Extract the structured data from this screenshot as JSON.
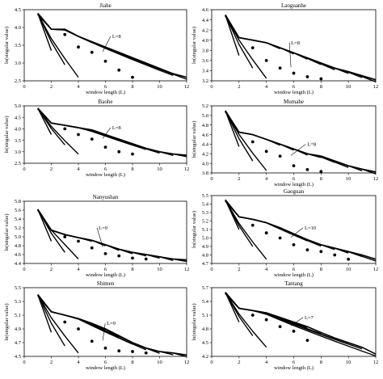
{
  "chart_data": [
    {
      "type": "line",
      "title": "Jiahe",
      "xlabel": "window length (L)",
      "ylabel": "ln(singular value)",
      "xlim": [
        0,
        12
      ],
      "ylim": [
        2.5,
        4.5
      ],
      "xticks": [
        "0",
        "2",
        "4",
        "6",
        "8",
        "10",
        "12"
      ],
      "yticks": [
        "2.5",
        "3.0",
        "3.5",
        "4.0",
        "4.5"
      ],
      "annotation": "L=8",
      "series_count": 12,
      "top": [
        4.4,
        3.95,
        3.95,
        3.75,
        3.6,
        3.45,
        3.3,
        3.15,
        3.0,
        2.85,
        2.7,
        2.6
      ],
      "bottom": [
        3.9,
        3.35,
        2.95,
        2.6
      ],
      "dots": [
        [
          3,
          3.8
        ],
        [
          4,
          3.45
        ],
        [
          5,
          3.3
        ],
        [
          6,
          3.05
        ],
        [
          7,
          2.8
        ],
        [
          8,
          2.6
        ]
      ],
      "annotation_at": [
        6.5,
        3.75
      ]
    },
    {
      "type": "line",
      "title": "Laoguanhe",
      "xlabel": "window length (L)",
      "ylabel": "ln(singular value)",
      "xlim": [
        0,
        12
      ],
      "ylim": [
        3.2,
        4.6
      ],
      "xticks": [
        "0",
        "2",
        "4",
        "6",
        "8",
        "10",
        "12"
      ],
      "yticks": [
        "3.2",
        "3.4",
        "3.6",
        "3.8",
        "4.0",
        "4.2",
        "4.4",
        "4.6"
      ],
      "annotation": "L=8",
      "series_count": 12,
      "top": [
        4.5,
        4.05,
        4.0,
        3.95,
        3.85,
        3.75,
        3.65,
        3.55,
        3.45,
        3.38,
        3.3,
        3.22
      ],
      "bottom": [
        4.1,
        3.7,
        3.45,
        3.25
      ],
      "dots": [
        [
          3,
          3.85
        ],
        [
          4,
          3.6
        ],
        [
          5,
          3.45
        ],
        [
          6,
          3.35
        ],
        [
          7,
          3.28
        ],
        [
          8,
          3.24
        ]
      ],
      "annotation_at": [
        5.8,
        3.95
      ]
    },
    {
      "type": "line",
      "title": "Baohe",
      "xlabel": "window length (L)",
      "ylabel": "ln(singular value)",
      "xlim": [
        0,
        12
      ],
      "ylim": [
        2.5,
        5.0
      ],
      "xticks": [
        "0",
        "2",
        "4",
        "6",
        "8",
        "10",
        "12"
      ],
      "yticks": [
        "2.5",
        "3.0",
        "3.5",
        "4.0",
        "4.5",
        "5.0"
      ],
      "annotation": "L=8",
      "series_count": 12,
      "top": [
        4.9,
        4.25,
        4.15,
        4.05,
        3.95,
        3.75,
        3.55,
        3.35,
        3.15,
        3.0,
        2.9,
        2.85
      ],
      "bottom": [
        4.35,
        3.75,
        3.3,
        2.9
      ],
      "dots": [
        [
          3,
          4.0
        ],
        [
          4,
          3.75
        ],
        [
          5,
          3.55
        ],
        [
          6,
          3.2
        ],
        [
          7,
          3.0
        ],
        [
          8,
          2.9
        ]
      ],
      "annotation_at": [
        6.5,
        4.05
      ]
    },
    {
      "type": "line",
      "title": "Mumahe",
      "xlabel": "window length (L)",
      "ylabel": "ln(singular value)",
      "xlim": [
        0,
        12
      ],
      "ylim": [
        3.8,
        5.2
      ],
      "xticks": [
        "0",
        "2",
        "4",
        "6",
        "8",
        "10",
        "12"
      ],
      "yticks": [
        "3.8",
        "4.0",
        "4.2",
        "4.4",
        "4.6",
        "4.8",
        "5.0",
        "5.2"
      ],
      "annotation": "L=8",
      "series_count": 12,
      "top": [
        5.1,
        4.65,
        4.6,
        4.5,
        4.4,
        4.3,
        4.2,
        4.15,
        4.05,
        3.95,
        3.88,
        3.82
      ],
      "bottom": [
        4.75,
        4.35,
        4.05,
        3.85
      ],
      "dots": [
        [
          3,
          4.45
        ],
        [
          4,
          4.25
        ],
        [
          5,
          4.15
        ],
        [
          6,
          3.95
        ],
        [
          7,
          3.87
        ],
        [
          8,
          3.83
        ]
      ],
      "annotation_at": [
        7.0,
        4.4
      ]
    },
    {
      "type": "line",
      "title": "Nanyushan",
      "xlabel": "window length (L)",
      "ylabel": "ln(singular value)",
      "xlim": [
        0,
        12
      ],
      "ylim": [
        4.4,
        5.8
      ],
      "xticks": [
        "0",
        "2",
        "4",
        "6",
        "8",
        "10",
        "12"
      ],
      "yticks": [
        "4.4",
        "4.6",
        "4.8",
        "5.0",
        "5.2",
        "5.4",
        "5.6",
        "5.8"
      ],
      "annotation": "L=9",
      "series_count": 12,
      "top": [
        5.62,
        5.15,
        5.05,
        4.98,
        4.92,
        4.82,
        4.72,
        4.65,
        4.6,
        4.55,
        4.5,
        4.48
      ],
      "bottom": [
        5.25,
        4.9,
        4.65,
        4.5
      ],
      "dots": [
        [
          3,
          5.0
        ],
        [
          4,
          4.9
        ],
        [
          5,
          4.75
        ],
        [
          6,
          4.62
        ],
        [
          7,
          4.57
        ],
        [
          8,
          4.52
        ],
        [
          9,
          4.5
        ]
      ],
      "annotation_at": [
        5.5,
        5.2
      ]
    },
    {
      "type": "line",
      "title": "Gaoguan",
      "xlabel": "window length (L)",
      "ylabel": "ln(singular value)",
      "xlim": [
        0,
        12
      ],
      "ylim": [
        4.7,
        5.5
      ],
      "xticks": [
        "0",
        "2",
        "4",
        "6",
        "8",
        "10",
        "12"
      ],
      "yticks": [
        "4.7",
        "4.8",
        "4.9",
        "5.0",
        "5.1",
        "5.2",
        "5.3",
        "5.4",
        "5.5"
      ],
      "annotation": "L=10",
      "series_count": 12,
      "top": [
        5.45,
        5.25,
        5.22,
        5.18,
        5.12,
        5.05,
        4.98,
        4.92,
        4.88,
        4.84,
        4.8,
        4.75
      ],
      "bottom": [
        5.3,
        5.1,
        4.9,
        4.75
      ],
      "dots": [
        [
          3,
          5.15
        ],
        [
          4,
          5.06
        ],
        [
          5,
          5.0
        ],
        [
          6,
          4.92
        ],
        [
          7,
          4.86
        ],
        [
          8,
          4.84
        ],
        [
          9,
          4.8
        ],
        [
          10,
          4.75
        ]
      ],
      "annotation_at": [
        6.8,
        5.12
      ]
    },
    {
      "type": "line",
      "title": "Shimen",
      "xlabel": "window length (L)",
      "ylabel": "ln(singular value)",
      "xlim": [
        0,
        12
      ],
      "ylim": [
        4.5,
        5.5
      ],
      "xticks": [
        "0",
        "2",
        "4",
        "6",
        "8",
        "10",
        "12"
      ],
      "yticks": [
        "4.5",
        "4.7",
        "4.9",
        "5.1",
        "5.3",
        "5.5"
      ],
      "annotation": "L=9",
      "series_count": 12,
      "top": [
        5.4,
        5.15,
        5.1,
        5.05,
        4.98,
        4.9,
        4.8,
        4.7,
        4.62,
        4.57,
        4.55,
        4.52
      ],
      "bottom": [
        5.15,
        4.85,
        4.65,
        4.55
      ],
      "dots": [
        [
          3,
          5.0
        ],
        [
          4,
          4.9
        ],
        [
          5,
          4.72
        ],
        [
          6,
          4.62
        ],
        [
          7,
          4.58
        ],
        [
          8,
          4.57
        ],
        [
          9,
          4.55
        ]
      ],
      "annotation_at": [
        6.1,
        4.98
      ]
    },
    {
      "type": "line",
      "title": "Tantang",
      "xlabel": "window length (L)",
      "ylabel": "ln(singular value)",
      "xlim": [
        0,
        12
      ],
      "ylim": [
        4.2,
        5.7
      ],
      "xticks": [
        "0",
        "2",
        "4",
        "6",
        "8",
        "10",
        "12"
      ],
      "yticks": [
        "4.2",
        "4.5",
        "4.8",
        "5.1",
        "5.4",
        "5.7"
      ],
      "annotation": "L=7",
      "series_count": 12,
      "top": [
        5.6,
        5.25,
        5.2,
        5.15,
        5.05,
        4.95,
        4.85,
        4.72,
        4.6,
        4.5,
        4.4,
        4.25
      ],
      "bottom": [
        5.25,
        4.95,
        4.65,
        4.4
      ],
      "dots": [
        [
          3,
          5.1
        ],
        [
          4,
          5.0
        ],
        [
          5,
          4.85
        ],
        [
          6,
          4.75
        ],
        [
          7,
          4.55
        ]
      ],
      "annotation_at": [
        6.8,
        5.05
      ]
    }
  ]
}
